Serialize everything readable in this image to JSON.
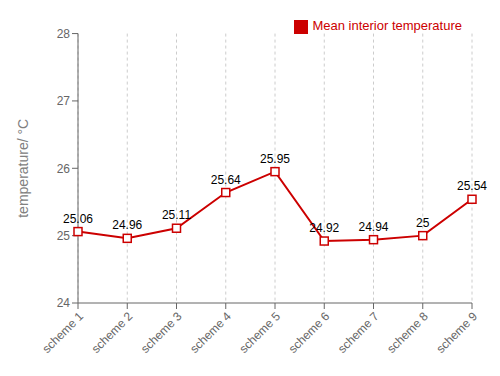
{
  "chart_data": {
    "type": "line",
    "categories": [
      "scheme 1",
      "scheme 2",
      "scheme 3",
      "scheme 4",
      "scheme 5",
      "scheme 6",
      "scheme 7",
      "scheme 8",
      "scheme 9"
    ],
    "series": [
      {
        "name": "Mean interior temperature",
        "color": "#cc0000",
        "marker": "square",
        "line_style": "solid",
        "values": [
          25.06,
          24.96,
          25.11,
          25.64,
          25.95,
          24.92,
          24.94,
          25.0,
          25.54
        ]
      }
    ],
    "ylabel": "temperature/ °C",
    "ylim": [
      24,
      28
    ],
    "yticks": [
      24,
      25,
      26,
      27,
      28
    ],
    "grid": true,
    "legend": "upper right",
    "data_labels": true
  }
}
